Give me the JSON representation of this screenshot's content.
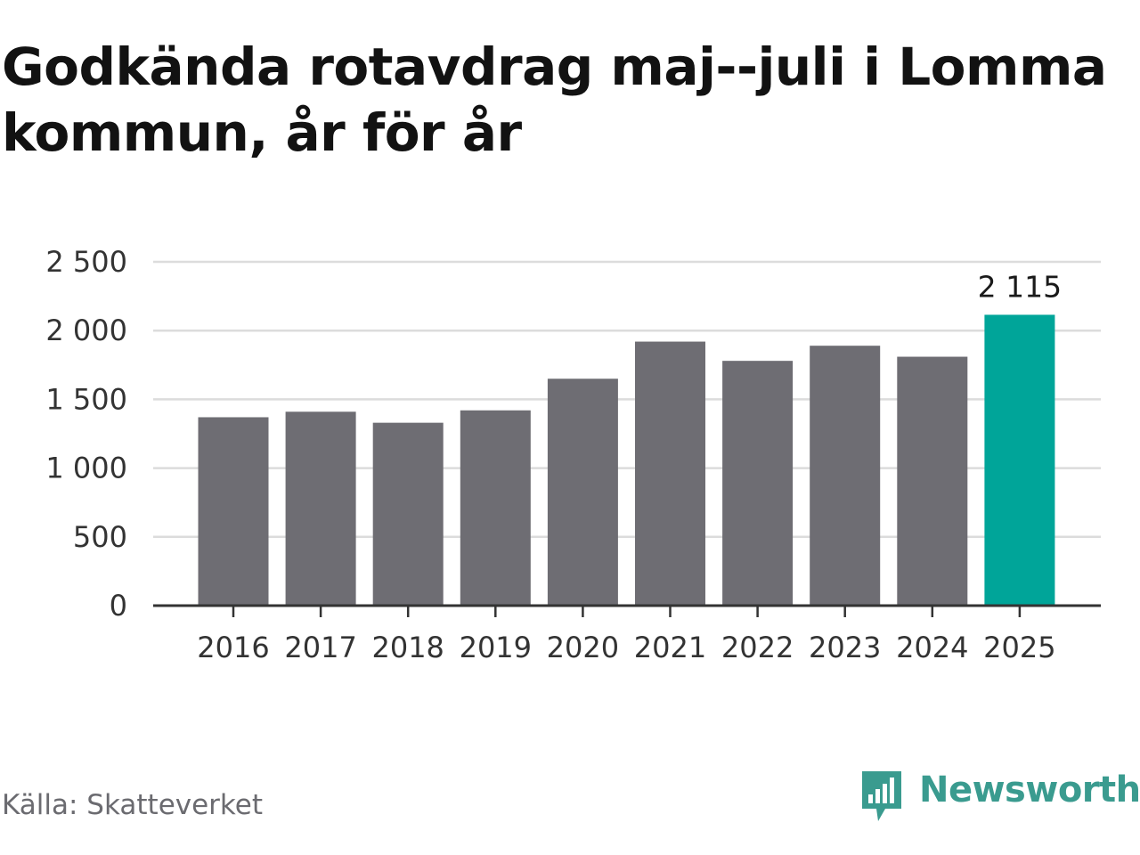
{
  "title": "Godkända rotavdrag maj--juli i Lomma kommun, år för år",
  "source": "Källa: Skatteverket",
  "logo": {
    "text": "Newsworthy",
    "icon": "newsworthy-logo-icon"
  },
  "colors": {
    "bar": "#6e6d73",
    "highlight": "#00a599",
    "grid": "#dcdcdc",
    "axis": "#333333",
    "logo": "#3a9b8f"
  },
  "chart_data": {
    "type": "bar",
    "title": "Godkända rotavdrag maj--juli i Lomma kommun, år för år",
    "xlabel": "",
    "ylabel": "",
    "categories": [
      "2016",
      "2017",
      "2018",
      "2019",
      "2020",
      "2021",
      "2022",
      "2023",
      "2024",
      "2025"
    ],
    "values": [
      1370,
      1410,
      1330,
      1420,
      1650,
      1920,
      1780,
      1890,
      1810,
      2115
    ],
    "highlight_index": 9,
    "value_labels": [
      {
        "index": 9,
        "text": "2 115"
      }
    ],
    "ylim": [
      0,
      2500
    ],
    "yticks": [
      0,
      500,
      1000,
      1500,
      2000,
      2500
    ],
    "ytick_labels": [
      "0",
      "500",
      "1 000",
      "1 500",
      "2 000",
      "2 500"
    ],
    "grid": true,
    "legend": "none"
  }
}
